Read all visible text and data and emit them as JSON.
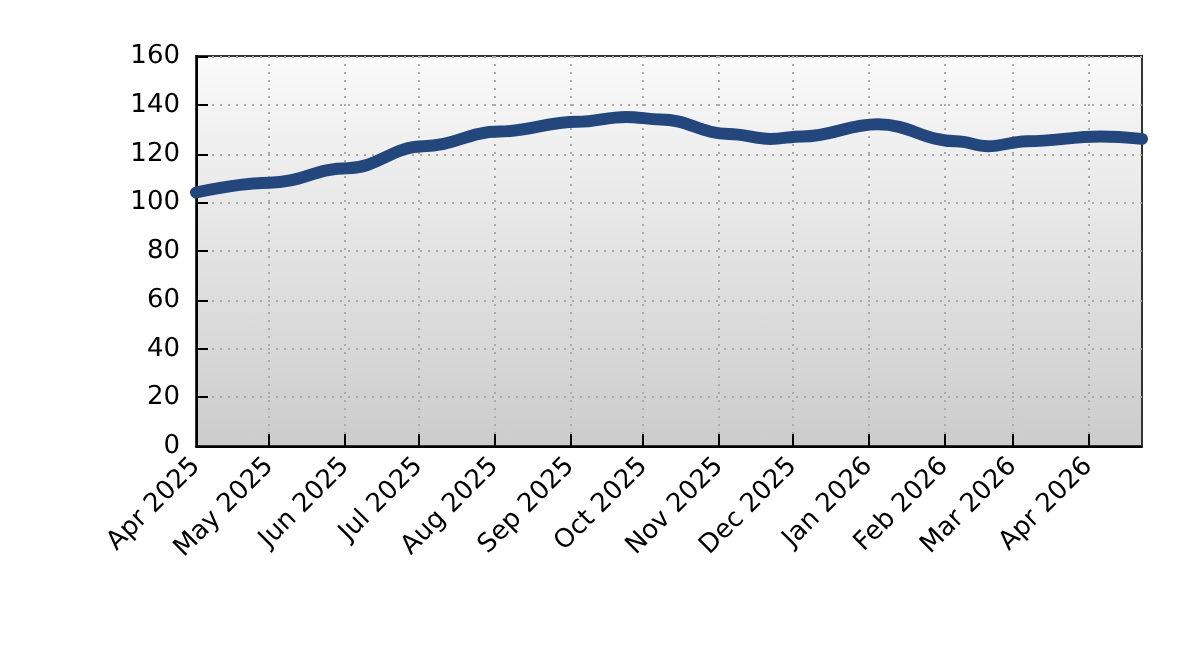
{
  "chart_data": {
    "type": "line",
    "x": [
      "2025-04-01",
      "2025-05-01",
      "2025-06-02",
      "2025-07-03",
      "2025-08-03",
      "2025-09-04",
      "2025-09-24",
      "2025-10-08",
      "2025-11-05",
      "2025-11-22",
      "2025-12-05",
      "2026-01-05",
      "2026-02-06",
      "2026-02-19",
      "2026-03-07",
      "2026-04-06",
      "2026-04-23"
    ],
    "series": [
      {
        "color": "#23467d",
        "values": [
          104,
          108,
          114,
          123,
          129,
          133,
          135,
          134,
          128,
          126,
          127,
          132,
          125,
          123,
          125,
          127,
          126
        ]
      }
    ],
    "xlim": [
      "2025-04-01",
      "2026-04-23"
    ],
    "xticks": [
      {
        "value": "2025-04-01",
        "label": "Apr 2025"
      },
      {
        "value": "2025-05-01",
        "label": "May 2025"
      },
      {
        "value": "2025-06-01",
        "label": "Jun 2025"
      },
      {
        "value": "2025-07-01",
        "label": "Jul 2025"
      },
      {
        "value": "2025-08-01",
        "label": "Aug 2025"
      },
      {
        "value": "2025-09-01",
        "label": "Sep 2025"
      },
      {
        "value": "2025-10-01",
        "label": "Oct 2025"
      },
      {
        "value": "2025-11-01",
        "label": "Nov 2025"
      },
      {
        "value": "2025-12-01",
        "label": "Dec 2025"
      },
      {
        "value": "2026-01-01",
        "label": "Jan 2026"
      },
      {
        "value": "2026-02-01",
        "label": "Feb 2026"
      },
      {
        "value": "2026-03-01",
        "label": "Mar 2026"
      },
      {
        "value": "2026-04-01",
        "label": "Apr 2026"
      }
    ],
    "ylim": [
      0,
      160
    ],
    "yticks": [
      0,
      20,
      40,
      60,
      80,
      100,
      120,
      140,
      160
    ],
    "grid": true,
    "marker": "none",
    "line_style": "solid"
  }
}
